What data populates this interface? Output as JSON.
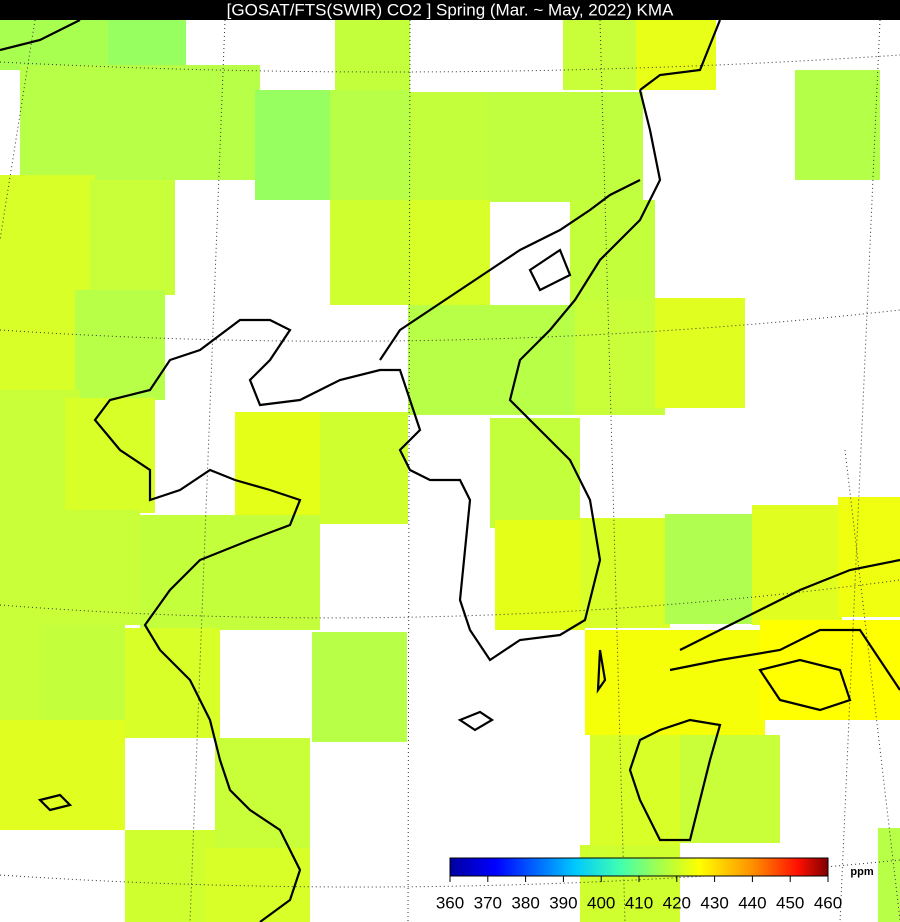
{
  "title": "[GOSAT/FTS(SWIR) CO2 ]   Spring  (Mar. ~ May,  2022)  KMA",
  "colorbar": {
    "unit": "ppm",
    "ticks": [
      360,
      370,
      380,
      390,
      400,
      410,
      420,
      430,
      440,
      450,
      460
    ]
  }
}
